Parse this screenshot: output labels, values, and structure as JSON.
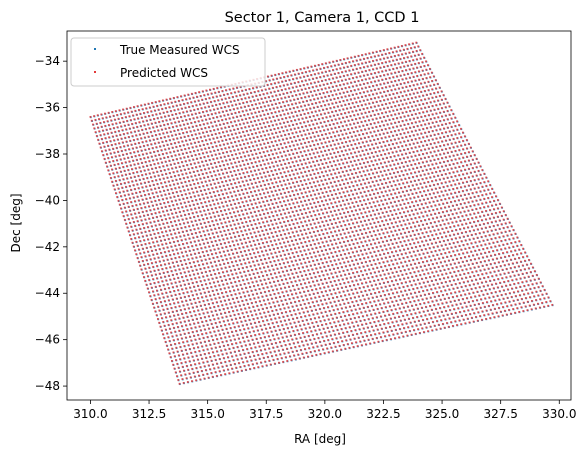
{
  "chart_data": {
    "type": "scatter",
    "title": "Sector 1, Camera 1, CCD 1",
    "xlabel": "RA [deg]",
    "ylabel": "Dec [deg]",
    "xlim": [
      309.0,
      330.5
    ],
    "ylim": [
      -48.6,
      -32.7
    ],
    "xticks": [
      310.0,
      312.5,
      315.0,
      317.5,
      320.0,
      322.5,
      325.0,
      327.5,
      330.0
    ],
    "xtick_labels": [
      "310.0",
      "312.5",
      "315.0",
      "317.5",
      "320.0",
      "322.5",
      "325.0",
      "327.5",
      "330.0"
    ],
    "yticks": [
      -48,
      -46,
      -44,
      -42,
      -40,
      -38,
      -36,
      -34
    ],
    "ytick_labels": [
      "−48",
      "−46",
      "−44",
      "−42",
      "−40",
      "−38",
      "−36",
      "−34"
    ],
    "grid": false,
    "legend_position": "top-left",
    "series": [
      {
        "name": "True Measured WCS",
        "color": "#1f77b4",
        "marker": "point",
        "region_corners": [
          [
            310.0,
            -36.4
          ],
          [
            323.9,
            -33.2
          ],
          [
            329.7,
            -44.5
          ],
          [
            313.8,
            -47.9
          ]
        ]
      },
      {
        "name": "Predicted WCS",
        "color": "#e33a3a",
        "marker": "point",
        "region_corners": [
          [
            310.0,
            -36.4
          ],
          [
            323.9,
            -33.2
          ],
          [
            329.7,
            -44.5
          ],
          [
            313.8,
            -47.9
          ]
        ]
      }
    ]
  }
}
